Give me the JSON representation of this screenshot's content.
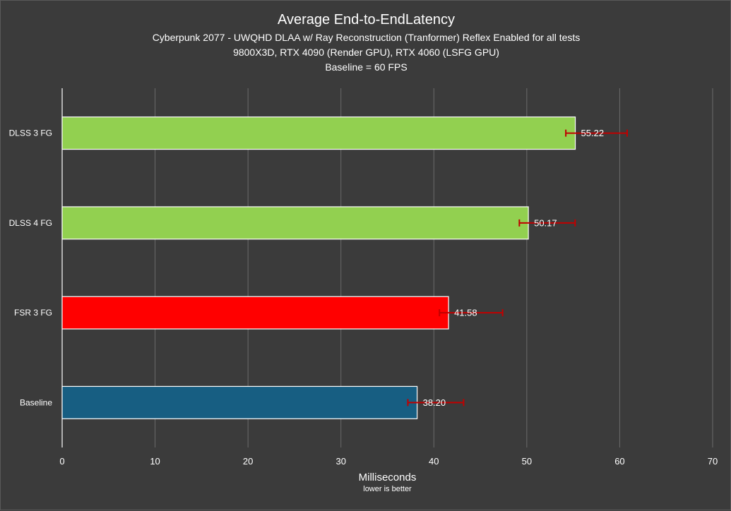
{
  "chart_data": {
    "type": "bar",
    "orientation": "horizontal",
    "title": "Average End-to-EndLatency",
    "subtitles": [
      "Cyberpunk 2077 - UWQHD DLAA w/ Ray Reconstruction (Tranformer) Reflex Enabled for all tests",
      "9800X3D, RTX 4090 (Render GPU), RTX 4060 (LSFG GPU)",
      "Baseline = 60 FPS"
    ],
    "xlabel": "Milliseconds",
    "xlabel_note": "lower is better",
    "ylabel": "",
    "xlim": [
      0,
      70
    ],
    "xticks": [
      0,
      10,
      20,
      30,
      40,
      50,
      60,
      70
    ],
    "grid": "vertical",
    "categories": [
      "DLSS 3 FG",
      "DLSS 4 FG",
      "FSR 3 FG",
      "Baseline"
    ],
    "values": [
      55.22,
      50.17,
      41.58,
      38.2
    ],
    "value_labels": [
      "55.22",
      "50.17",
      "41.58",
      "38.20"
    ],
    "error_bars": [
      {
        "low": 54.2,
        "high": 60.8
      },
      {
        "low": 49.2,
        "high": 55.2
      },
      {
        "low": 40.6,
        "high": 47.4
      },
      {
        "low": 37.2,
        "high": 43.2
      }
    ],
    "colors": [
      "#92d050",
      "#92d050",
      "#ff0000",
      "#175e82"
    ],
    "bar_border_color": "#ffffff",
    "error_bar_color": "#c00000",
    "gridline_color": "#6b6b6b",
    "background_color": "#3b3b3b"
  }
}
